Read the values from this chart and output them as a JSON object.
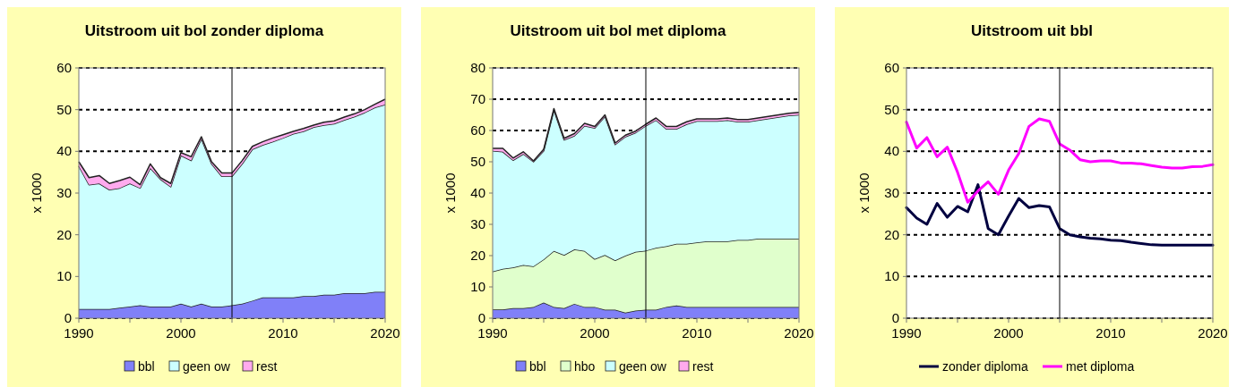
{
  "chart_data": [
    {
      "type": "area",
      "stacked": true,
      "title": "Uitstroom uit bol zonder diploma",
      "ylabel": "x 1000",
      "x": [
        1990,
        1991,
        1992,
        1993,
        1994,
        1995,
        1996,
        1997,
        1998,
        1999,
        2000,
        2001,
        2002,
        2003,
        2004,
        2005,
        2006,
        2007,
        2008,
        2009,
        2010,
        2011,
        2012,
        2013,
        2014,
        2015,
        2016,
        2017,
        2018,
        2019,
        2020
      ],
      "xlim": [
        1990,
        2020
      ],
      "xticks": [
        1990,
        {
          "value": 1995,
          "label": null
        },
        2000,
        {
          "value": 2005,
          "label": null
        },
        2010,
        {
          "value": 2015,
          "label": null
        },
        2020
      ],
      "ylim": [
        0,
        60
      ],
      "yticks": [
        0,
        10,
        20,
        30,
        40,
        50,
        60
      ],
      "grid": "y",
      "legend": "bottom",
      "ref_lines": [
        {
          "axis": "x",
          "value": 2005,
          "color": "#000000"
        }
      ],
      "series": [
        {
          "name": "bbl",
          "color": "#8080f8",
          "values": [
            2.2,
            2.2,
            2.2,
            2.2,
            2.5,
            2.8,
            3.1,
            2.8,
            2.8,
            2.8,
            3.5,
            2.8,
            3.5,
            2.8,
            2.8,
            3.1,
            3.5,
            4.2,
            5,
            5,
            5,
            5,
            5.3,
            5.3,
            5.6,
            5.6,
            6,
            6,
            6,
            6.3,
            6.3
          ]
        },
        {
          "name": "geen ow",
          "color": "#ccffff",
          "values": [
            34.3,
            29.8,
            30.1,
            28.6,
            28.7,
            29.5,
            28.1,
            33.2,
            30.5,
            28.7,
            35.5,
            35,
            39.5,
            34.2,
            31.2,
            30.9,
            33.5,
            36.3,
            36.5,
            37.3,
            38.2,
            39.2,
            39.5,
            40.5,
            40.7,
            41,
            41.5,
            42.3,
            43.3,
            44.2,
            44.9
          ]
        },
        {
          "name": "rest",
          "color": "#ffaaee",
          "values": [
            1,
            1.7,
            1.9,
            1.5,
            1.8,
            1.5,
            0.8,
            1,
            0.4,
            0.8,
            0.7,
            0.9,
            0.5,
            0.5,
            0.8,
            0.8,
            0.8,
            0.7,
            0.8,
            0.9,
            0.8,
            0.6,
            0.7,
            0.5,
            0.7,
            0.7,
            0.7,
            0.7,
            0.7,
            0.8,
            1.3
          ]
        }
      ]
    },
    {
      "type": "area",
      "stacked": true,
      "title": "Uitstroom uit bol met diploma",
      "ylabel": "x 1000",
      "x": [
        1990,
        1991,
        1992,
        1993,
        1994,
        1995,
        1996,
        1997,
        1998,
        1999,
        2000,
        2001,
        2002,
        2003,
        2004,
        2005,
        2006,
        2007,
        2008,
        2009,
        2010,
        2011,
        2012,
        2013,
        2014,
        2015,
        2016,
        2017,
        2018,
        2019,
        2020
      ],
      "xlim": [
        1990,
        2020
      ],
      "xticks": [
        1990,
        {
          "value": 1995,
          "label": null
        },
        2000,
        {
          "value": 2005,
          "label": null
        },
        2010,
        {
          "value": 2015,
          "label": null
        },
        2020
      ],
      "ylim": [
        0,
        80
      ],
      "yticks": [
        0,
        10,
        20,
        30,
        40,
        50,
        60,
        70,
        80
      ],
      "grid": "y",
      "legend": "bottom",
      "ref_lines": [
        {
          "axis": "x",
          "value": 2005,
          "color": "#000000"
        }
      ],
      "series": [
        {
          "name": "bbl",
          "color": "#8080f8",
          "values": [
            2.8,
            2.8,
            3.2,
            3.2,
            3.6,
            5,
            3.6,
            3.2,
            4.6,
            3.6,
            3.6,
            2.7,
            2.7,
            1.8,
            2.4,
            2.7,
            2.7,
            3.6,
            4.1,
            3.6,
            3.6,
            3.6,
            3.6,
            3.6,
            3.6,
            3.6,
            3.6,
            3.6,
            3.6,
            3.6,
            3.6
          ]
        },
        {
          "name": "hbo",
          "color": "#e0ffcc",
          "values": [
            12.1,
            13,
            13,
            13.8,
            13,
            13.8,
            17.9,
            17,
            17.4,
            17.9,
            15.3,
            17.5,
            15.8,
            18.2,
            18.8,
            18.9,
            19.8,
            19.4,
            19.7,
            20.2,
            20.6,
            21,
            21,
            21,
            21.4,
            21.4,
            21.8,
            21.8,
            21.8,
            21.8,
            21.8
          ]
        },
        {
          "name": "geen ow",
          "color": "#ccffff",
          "values": [
            38.6,
            37.4,
            34.3,
            35.5,
            33.4,
            34.7,
            45,
            36.8,
            36.3,
            40,
            41.9,
            44.3,
            37,
            38,
            38.1,
            39.9,
            40.8,
            37.5,
            36.7,
            38.2,
            38.8,
            38.4,
            38.4,
            38.7,
            37.8,
            37.8,
            37.9,
            38.4,
            38.9,
            39.4,
            39.6
          ]
        },
        {
          "name": "rest",
          "color": "#ffaaee",
          "values": [
            0.8,
            1.1,
            0.7,
            0.7,
            0.3,
            0.5,
            0.5,
            0.5,
            0.7,
            0.8,
            0.5,
            0.5,
            0.5,
            0.5,
            0.5,
            0.5,
            0.7,
            0.8,
            0.8,
            0.8,
            0.7,
            0.7,
            0.7,
            0.7,
            0.7,
            0.7,
            0.7,
            0.7,
            0.7,
            0.7,
            0.8
          ]
        }
      ]
    },
    {
      "type": "line",
      "title": "Uitstroom uit bbl",
      "ylabel": "x 1000",
      "x": [
        1990,
        1991,
        1992,
        1993,
        1994,
        1995,
        1996,
        1997,
        1998,
        1999,
        2000,
        2001,
        2002,
        2003,
        2004,
        2005,
        2006,
        2007,
        2008,
        2009,
        2010,
        2011,
        2012,
        2013,
        2014,
        2015,
        2016,
        2017,
        2018,
        2019,
        2020
      ],
      "xlim": [
        1990,
        2020
      ],
      "xticks": [
        1990,
        {
          "value": 1995,
          "label": null
        },
        2000,
        {
          "value": 2005,
          "label": null
        },
        2010,
        {
          "value": 2015,
          "label": null
        },
        2020
      ],
      "ylim": [
        0,
        60
      ],
      "yticks": [
        0,
        10,
        20,
        30,
        40,
        50,
        60
      ],
      "grid": "y",
      "legend": "bottom",
      "ref_lines": [
        {
          "axis": "x",
          "value": 2005,
          "color": "#000000"
        }
      ],
      "series": [
        {
          "name": "zonder diploma",
          "color": "#000040",
          "values": [
            26.5,
            24,
            22.5,
            27.5,
            24.2,
            26.8,
            25.5,
            32,
            21.5,
            20,
            24.5,
            28.7,
            26.5,
            27,
            26.7,
            21.5,
            20,
            19.5,
            19.2,
            19,
            18.7,
            18.6,
            18.2,
            17.9,
            17.6,
            17.5,
            17.5,
            17.5,
            17.5,
            17.5,
            17.5
          ]
        },
        {
          "name": "met diploma",
          "color": "#ff00ff",
          "values": [
            47,
            40.8,
            43.3,
            38.7,
            41,
            35,
            27.8,
            30.5,
            32.7,
            29.7,
            35.5,
            39.5,
            46,
            47.8,
            47.2,
            41.8,
            40.3,
            38,
            37.5,
            37.7,
            37.7,
            37.2,
            37.2,
            37,
            36.6,
            36.2,
            36,
            36,
            36.3,
            36.4,
            36.8
          ]
        }
      ]
    }
  ]
}
